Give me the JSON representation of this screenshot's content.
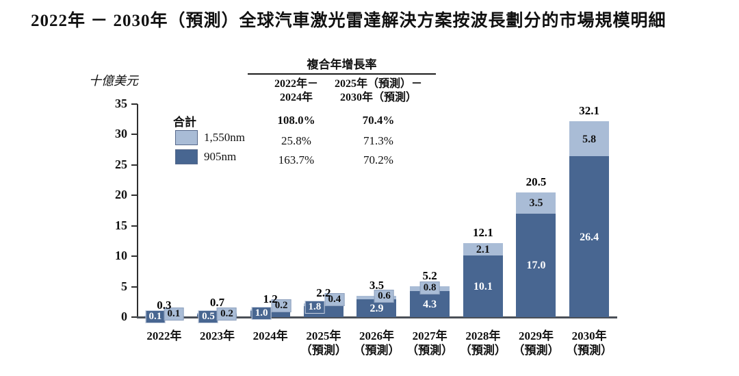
{
  "title": "2022年 － 2030年（預測）全球汽車激光雷達解決方案按波長劃分的市場規模明細",
  "unit_label": "十億美元",
  "cagr_table": {
    "title": "複合年增長率",
    "col_headers": [
      {
        "line1": "2022年－",
        "line2": "2024年"
      },
      {
        "line1": "2025年（預測）－",
        "line2": "2030年（預測）"
      }
    ],
    "rows": [
      {
        "label": "合計",
        "values": [
          "108.0%",
          "70.4%"
        ]
      },
      {
        "label": "1,550nm",
        "values": [
          "25.8%",
          "71.3%"
        ]
      },
      {
        "label": "905nm",
        "values": [
          "163.7%",
          "70.2%"
        ]
      }
    ]
  },
  "legend": {
    "total_label": "合計",
    "items": [
      {
        "label": "1,550nm",
        "color": "#a9bcd6"
      },
      {
        "label": "905nm",
        "color": "#486691"
      }
    ]
  },
  "chart_data": {
    "type": "bar",
    "stacked": true,
    "title": "2022年－2030年（預測）全球汽車激光雷達解決方案按波長劃分的市場規模明細",
    "ylabel": "十億美元",
    "ylim": [
      0,
      35
    ],
    "yticks": [
      0,
      5,
      10,
      15,
      20,
      25,
      30,
      35
    ],
    "grid": false,
    "legend_position": "upper-left",
    "categories": [
      "2022年",
      "2023年",
      "2024年",
      "2025年",
      "2026年",
      "2027年",
      "2028年",
      "2029年",
      "2030年"
    ],
    "category_sublabels": [
      "",
      "",
      "",
      "（預測）",
      "（預測）",
      "（預測）",
      "（預測）",
      "（預測）",
      "（預測）"
    ],
    "series": [
      {
        "name": "905nm",
        "color": "#486691",
        "values": [
          0.1,
          0.5,
          1.0,
          1.8,
          2.9,
          4.3,
          10.1,
          17.0,
          26.4
        ]
      },
      {
        "name": "1,550nm",
        "color": "#a9bcd6",
        "values": [
          0.1,
          0.2,
          0.2,
          0.4,
          0.6,
          0.8,
          2.1,
          3.5,
          5.8
        ]
      }
    ],
    "totals": [
      0.3,
      0.7,
      1.2,
      2.2,
      3.5,
      5.2,
      12.1,
      20.5,
      32.1
    ]
  }
}
